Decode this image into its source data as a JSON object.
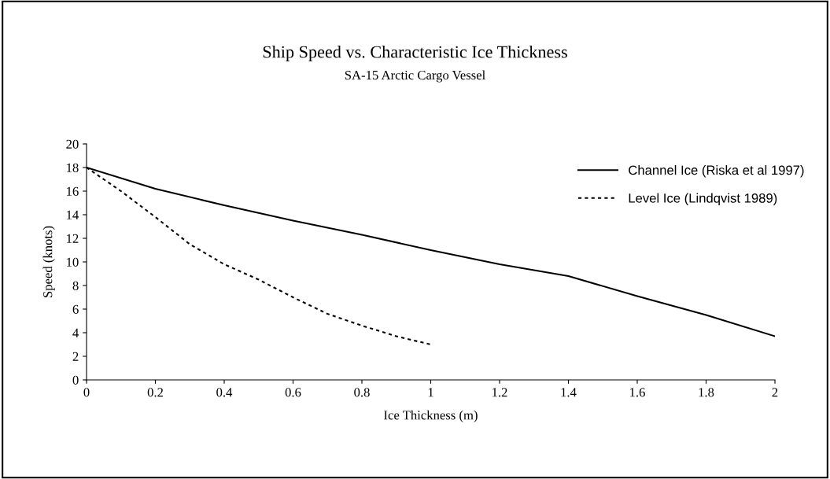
{
  "chart_data": {
    "type": "line",
    "title": "Ship Speed vs. Characteristic Ice Thickness",
    "subtitle": "SA-15 Arctic Cargo Vessel",
    "xlabel": "Ice Thickness (m)",
    "ylabel": "Speed (knots)",
    "series": [
      {
        "name": "Channel Ice (Riska et al 1997)",
        "color": "#000000",
        "line_style": "solid",
        "x": [
          0,
          0.2,
          0.4,
          0.6,
          0.8,
          1.0,
          1.2,
          1.4,
          1.6,
          1.8,
          2.0
        ],
        "values": [
          18,
          16.2,
          14.8,
          13.5,
          12.3,
          11.0,
          9.8,
          8.8,
          7.1,
          5.5,
          3.7
        ]
      },
      {
        "name": "Level Ice (Lindqvist 1989)",
        "color": "#000000",
        "line_style": "dotted",
        "x": [
          0,
          0.1,
          0.2,
          0.3,
          0.4,
          0.5,
          0.6,
          0.7,
          0.8,
          0.9,
          1.0
        ],
        "values": [
          18,
          16,
          13.8,
          11.5,
          9.8,
          8.5,
          7.0,
          5.6,
          4.6,
          3.7,
          3.0
        ]
      }
    ],
    "xlim": [
      0,
      2
    ],
    "xticks": [
      0,
      {
        "value": 0.2,
        "label": "0.2"
      },
      {
        "value": 0.4,
        "label": "0.4"
      },
      {
        "value": 0.6,
        "label": "0.6"
      },
      {
        "value": 0.8,
        "label": "0.8"
      },
      1,
      {
        "value": 1.2,
        "label": "1.2"
      },
      {
        "value": 1.4,
        "label": "1.4"
      },
      {
        "value": 1.6,
        "label": "1.6"
      },
      {
        "value": 1.8,
        "label": "1.8"
      },
      2
    ],
    "ylim": [
      0,
      20
    ],
    "yticks": [
      0,
      2,
      4,
      6,
      8,
      10,
      12,
      14,
      16,
      18,
      20
    ],
    "grid": false,
    "legend": "top right",
    "marker": "none"
  }
}
